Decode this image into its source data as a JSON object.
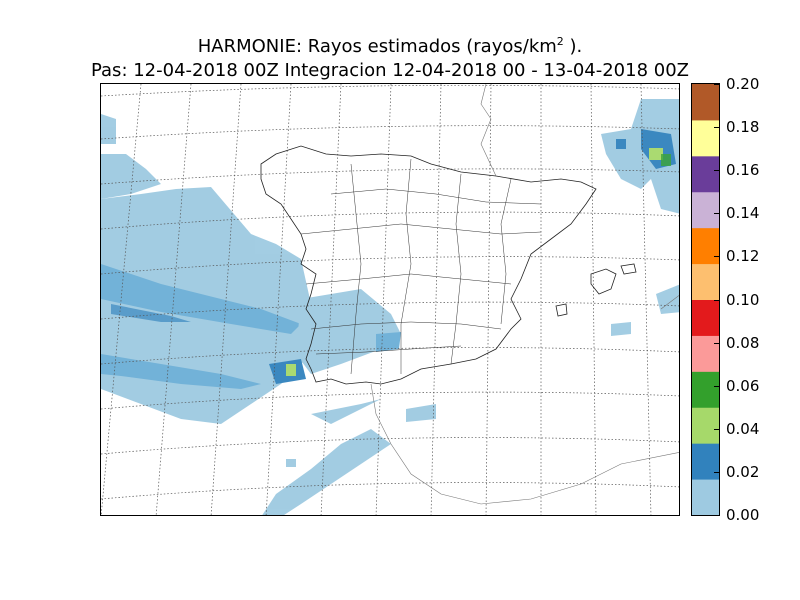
{
  "title": {
    "line1_text": "HARMONIE: Rayos estimados  (rayos/km",
    "line1_sup": "2",
    "line1_end": " ).",
    "line2": "Pas: 12-04-2018 00Z Integracion 12-04-2018 00 - 13-04-2018 00Z"
  },
  "colorbar": {
    "ticks": [
      "0.00",
      "0.02",
      "0.04",
      "0.06",
      "0.08",
      "0.10",
      "0.12",
      "0.14",
      "0.16",
      "0.18",
      "0.20"
    ],
    "colors": [
      "#9ecae1",
      "#3182bd",
      "#a6d96a",
      "#33a02c",
      "#fb9a99",
      "#e31a1c",
      "#fdbf6f",
      "#ff7f00",
      "#cab2d6",
      "#6a3d9a",
      "#ffff99",
      "#b15928"
    ]
  },
  "map": {
    "region": "Peninsula Iberica",
    "field_colors": {
      "low": "#9ecae1",
      "medium": "#6baed6",
      "high": "#3182bd",
      "peak": "#a6d96a",
      "peak_edge": "#33a02c"
    }
  }
}
